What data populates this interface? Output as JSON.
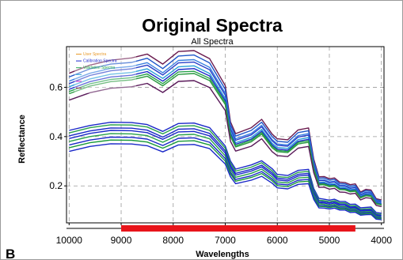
{
  "chart_data": {
    "type": "line",
    "title": "Original Spectra",
    "subtitle": "All Spectra",
    "xlabel": "Wavelengths",
    "ylabel": "Reflectance",
    "panel_label": "B",
    "xlim": [
      10050,
      3950
    ],
    "ylim": [
      0.05,
      0.765
    ],
    "x_reversed": true,
    "grid": true,
    "legend_position": "top-left",
    "xticks": [
      10000,
      9000,
      8000,
      7000,
      6000,
      5000,
      4000
    ],
    "yticks": [
      0.2,
      0.4,
      0.6
    ],
    "ytick_labels": [
      "0.2",
      "0.4",
      "0.6"
    ],
    "x": [
      10000,
      9600,
      9200,
      8800,
      8500,
      8200,
      7900,
      7600,
      7300,
      7000,
      6900,
      6800,
      6500,
      6300,
      6100,
      6000,
      5800,
      5600,
      5400,
      5300,
      5200,
      5100,
      5000,
      4900,
      4800,
      4700,
      4600,
      4500,
      4400,
      4300,
      4200,
      4100,
      4000
    ],
    "selected_range": {
      "from": 9000,
      "to": 4500,
      "color": "#e8141a"
    },
    "legend": [
      {
        "label": "User Spectra",
        "color": "#e89a2a"
      },
      {
        "label": "Calibration Spectra",
        "color": "#1a28d0"
      },
      {
        "label": "Validation Spectra",
        "color": "#2aa850"
      },
      {
        "label": "",
        "color": "#20a0d0"
      },
      {
        "label": "",
        "color": "#d020c8"
      },
      {
        "label": "",
        "color": "#a02a60"
      }
    ],
    "series": [
      {
        "color": "#6a1a4e",
        "values": [
          0.657,
          0.69,
          0.71,
          0.719,
          0.735,
          0.694,
          0.745,
          0.749,
          0.716,
          0.607,
          0.46,
          0.412,
          0.436,
          0.47,
          0.41,
          0.391,
          0.387,
          0.427,
          0.435,
          0.308,
          0.237,
          0.238,
          0.229,
          0.232,
          0.215,
          0.214,
          0.205,
          0.208,
          0.175,
          0.186,
          0.183,
          0.148,
          0.143
        ]
      },
      {
        "color": "#1e56c8",
        "values": [
          0.642,
          0.675,
          0.694,
          0.701,
          0.718,
          0.676,
          0.727,
          0.731,
          0.699,
          0.592,
          0.448,
          0.402,
          0.425,
          0.458,
          0.4,
          0.381,
          0.377,
          0.416,
          0.424,
          0.3,
          0.231,
          0.232,
          0.223,
          0.226,
          0.209,
          0.208,
          0.199,
          0.202,
          0.171,
          0.181,
          0.178,
          0.144,
          0.139
        ]
      },
      {
        "color": "#3a80e0",
        "values": [
          0.625,
          0.657,
          0.677,
          0.685,
          0.7,
          0.659,
          0.709,
          0.712,
          0.681,
          0.576,
          0.436,
          0.391,
          0.413,
          0.446,
          0.388,
          0.37,
          0.366,
          0.404,
          0.412,
          0.291,
          0.224,
          0.225,
          0.216,
          0.219,
          0.203,
          0.202,
          0.193,
          0.196,
          0.165,
          0.175,
          0.173,
          0.14,
          0.135
        ]
      },
      {
        "color": "#2a40c8",
        "values": [
          0.615,
          0.648,
          0.667,
          0.675,
          0.69,
          0.65,
          0.699,
          0.702,
          0.671,
          0.568,
          0.43,
          0.385,
          0.407,
          0.44,
          0.383,
          0.365,
          0.361,
          0.398,
          0.406,
          0.287,
          0.221,
          0.222,
          0.213,
          0.216,
          0.2,
          0.199,
          0.19,
          0.193,
          0.163,
          0.173,
          0.17,
          0.138,
          0.133
        ]
      },
      {
        "color": "#2aa0d8",
        "values": [
          0.602,
          0.634,
          0.653,
          0.66,
          0.675,
          0.636,
          0.683,
          0.687,
          0.656,
          0.555,
          0.419,
          0.375,
          0.397,
          0.429,
          0.373,
          0.356,
          0.352,
          0.388,
          0.396,
          0.279,
          0.214,
          0.215,
          0.207,
          0.209,
          0.194,
          0.193,
          0.185,
          0.187,
          0.158,
          0.168,
          0.165,
          0.134,
          0.129
        ]
      },
      {
        "color": "#1a28c8",
        "values": [
          0.592,
          0.623,
          0.642,
          0.649,
          0.664,
          0.625,
          0.672,
          0.676,
          0.646,
          0.546,
          0.412,
          0.369,
          0.39,
          0.422,
          0.366,
          0.349,
          0.345,
          0.381,
          0.389,
          0.274,
          0.21,
          0.211,
          0.203,
          0.205,
          0.19,
          0.189,
          0.181,
          0.184,
          0.155,
          0.165,
          0.162,
          0.131,
          0.126
        ]
      },
      {
        "color": "#27a14a",
        "values": [
          0.583,
          0.614,
          0.632,
          0.639,
          0.654,
          0.615,
          0.662,
          0.665,
          0.636,
          0.538,
          0.406,
          0.363,
          0.385,
          0.416,
          0.361,
          0.344,
          0.34,
          0.376,
          0.383,
          0.27,
          0.207,
          0.208,
          0.2,
          0.202,
          0.187,
          0.186,
          0.179,
          0.181,
          0.153,
          0.162,
          0.16,
          0.129,
          0.124
        ]
      },
      {
        "color": "#2a9a40",
        "values": [
          0.574,
          0.605,
          0.623,
          0.63,
          0.645,
          0.606,
          0.652,
          0.656,
          0.627,
          0.53,
          0.4,
          0.358,
          0.379,
          0.41,
          0.355,
          0.339,
          0.335,
          0.37,
          0.377,
          0.266,
          0.204,
          0.205,
          0.197,
          0.199,
          0.185,
          0.184,
          0.176,
          0.178,
          0.151,
          0.16,
          0.157,
          0.127,
          0.122
        ]
      },
      {
        "color": "#5a1a5a",
        "values": [
          0.548,
          0.578,
          0.596,
          0.602,
          0.616,
          0.579,
          0.624,
          0.627,
          0.599,
          0.506,
          0.381,
          0.341,
          0.361,
          0.391,
          0.339,
          0.323,
          0.319,
          0.353,
          0.36,
          0.253,
          0.194,
          0.195,
          0.187,
          0.19,
          0.175,
          0.174,
          0.167,
          0.17,
          0.143,
          0.152,
          0.15,
          0.121,
          0.116
        ]
      },
      {
        "color": "#1a28c8",
        "values": [
          0.425,
          0.445,
          0.458,
          0.457,
          0.449,
          0.421,
          0.453,
          0.455,
          0.436,
          0.362,
          0.301,
          0.268,
          0.285,
          0.302,
          0.27,
          0.247,
          0.242,
          0.263,
          0.267,
          0.189,
          0.149,
          0.146,
          0.142,
          0.146,
          0.137,
          0.137,
          0.125,
          0.126,
          0.111,
          0.113,
          0.114,
          0.092,
          0.089
        ]
      },
      {
        "color": "#27a14a",
        "values": [
          0.415,
          0.436,
          0.448,
          0.447,
          0.439,
          0.411,
          0.442,
          0.444,
          0.425,
          0.353,
          0.292,
          0.26,
          0.276,
          0.294,
          0.261,
          0.238,
          0.234,
          0.255,
          0.259,
          0.182,
          0.142,
          0.14,
          0.136,
          0.14,
          0.131,
          0.131,
          0.119,
          0.12,
          0.105,
          0.107,
          0.108,
          0.087,
          0.084
        ]
      },
      {
        "color": "#1a28c8",
        "values": [
          0.403,
          0.423,
          0.435,
          0.434,
          0.426,
          0.398,
          0.43,
          0.432,
          0.413,
          0.342,
          0.283,
          0.251,
          0.267,
          0.284,
          0.253,
          0.231,
          0.227,
          0.247,
          0.251,
          0.176,
          0.137,
          0.135,
          0.131,
          0.135,
          0.126,
          0.126,
          0.114,
          0.115,
          0.101,
          0.103,
          0.104,
          0.083,
          0.08
        ]
      },
      {
        "color": "#1a28c8",
        "values": [
          0.392,
          0.413,
          0.425,
          0.424,
          0.416,
          0.389,
          0.419,
          0.421,
          0.403,
          0.333,
          0.275,
          0.244,
          0.26,
          0.277,
          0.246,
          0.224,
          0.22,
          0.24,
          0.244,
          0.17,
          0.132,
          0.13,
          0.126,
          0.13,
          0.121,
          0.121,
          0.11,
          0.111,
          0.097,
          0.099,
          0.1,
          0.079,
          0.077
        ]
      },
      {
        "color": "#27a14a",
        "values": [
          0.38,
          0.4,
          0.412,
          0.411,
          0.404,
          0.377,
          0.407,
          0.409,
          0.391,
          0.322,
          0.266,
          0.235,
          0.251,
          0.268,
          0.237,
          0.216,
          0.212,
          0.232,
          0.235,
          0.164,
          0.127,
          0.125,
          0.121,
          0.125,
          0.116,
          0.116,
          0.105,
          0.106,
          0.093,
          0.095,
          0.096,
          0.076,
          0.073
        ]
      },
      {
        "color": "#1a28c8",
        "values": [
          0.366,
          0.386,
          0.398,
          0.397,
          0.39,
          0.364,
          0.393,
          0.395,
          0.377,
          0.311,
          0.256,
          0.226,
          0.241,
          0.258,
          0.228,
          0.208,
          0.204,
          0.223,
          0.226,
          0.157,
          0.121,
          0.12,
          0.116,
          0.12,
          0.111,
          0.111,
          0.101,
          0.102,
          0.089,
          0.091,
          0.092,
          0.072,
          0.07
        ]
      },
      {
        "color": "#1a9a3a",
        "values": [
          0.355,
          0.375,
          0.386,
          0.385,
          0.378,
          0.353,
          0.381,
          0.383,
          0.366,
          0.301,
          0.248,
          0.219,
          0.234,
          0.25,
          0.221,
          0.201,
          0.197,
          0.216,
          0.219,
          0.152,
          0.117,
          0.116,
          0.112,
          0.116,
          0.107,
          0.107,
          0.097,
          0.098,
          0.085,
          0.087,
          0.088,
          0.069,
          0.067
        ]
      },
      {
        "color": "#1a28c8",
        "values": [
          0.34,
          0.36,
          0.371,
          0.37,
          0.363,
          0.338,
          0.366,
          0.368,
          0.351,
          0.289,
          0.237,
          0.209,
          0.223,
          0.239,
          0.211,
          0.192,
          0.188,
          0.206,
          0.209,
          0.145,
          0.111,
          0.11,
          0.106,
          0.11,
          0.102,
          0.102,
          0.092,
          0.093,
          0.081,
          0.083,
          0.084,
          0.065,
          0.063
        ]
      }
    ]
  }
}
